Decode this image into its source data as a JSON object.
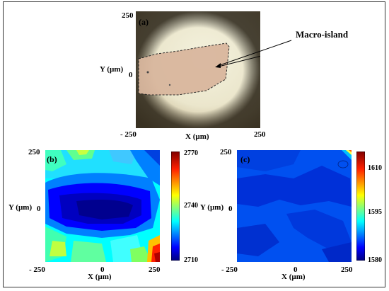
{
  "figure": {
    "panel_a": {
      "letter": "(a)",
      "annotation": "Macro-island",
      "y_axis_label": "Y (µm)",
      "x_axis_label": "X (µm)",
      "y_tick_top": "250",
      "y_tick_mid": "0",
      "x_tick_left": "- 250",
      "x_tick_right": "250"
    },
    "panel_b": {
      "letter": "(b)",
      "y_axis_label": "Y (µm)",
      "x_axis_label": "X (µm)",
      "y_tick_top": "250",
      "y_tick_mid": "0",
      "x_tick_left": "- 250",
      "x_tick_mid": "0",
      "x_tick_right": "250",
      "colorbar_ticks": [
        "2770",
        "2740",
        "2710"
      ]
    },
    "panel_c": {
      "letter": "(c)",
      "y_axis_label": "Y (µm)",
      "x_axis_label": "X (µm)",
      "y_tick_top": "250",
      "y_tick_mid": "0",
      "x_tick_left": "- 250",
      "x_tick_mid": "0",
      "x_tick_right": "250",
      "colorbar_ticks": [
        "1610",
        "1595",
        "1580"
      ]
    }
  },
  "colors": {
    "colormap": [
      "#00007f",
      "#0000ff",
      "#0080ff",
      "#00ffff",
      "#80ff80",
      "#ffff00",
      "#ff8000",
      "#ff0000",
      "#800000"
    ],
    "micrograph_bg": "#f2f0dc",
    "island_fill": "#d8b8a0"
  }
}
